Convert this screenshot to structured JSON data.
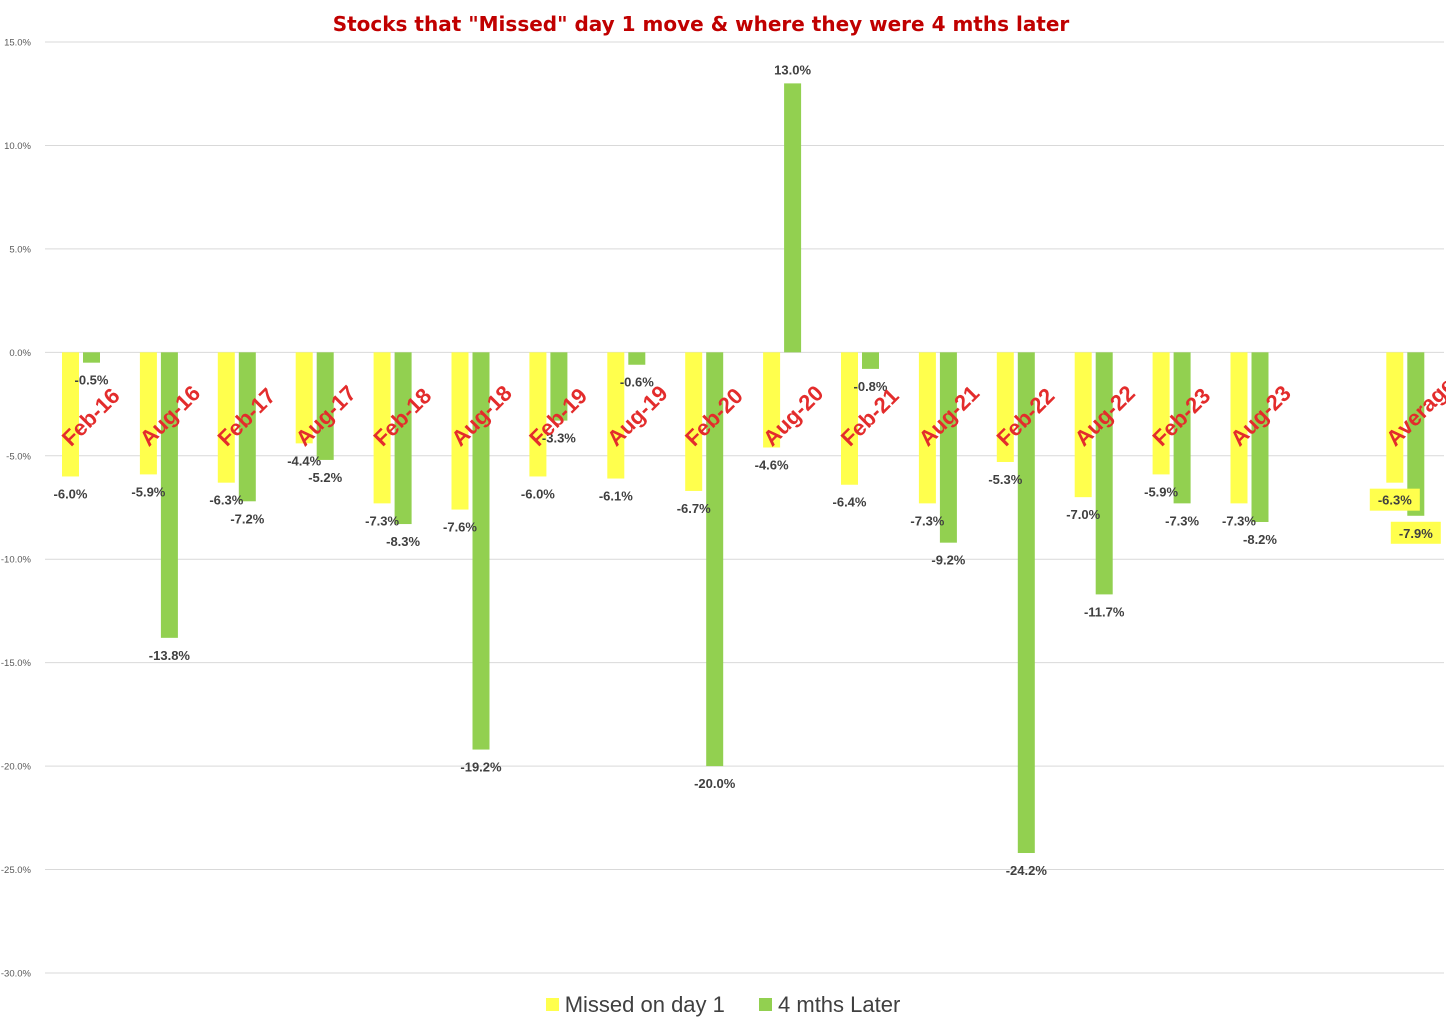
{
  "chart_data": {
    "type": "bar",
    "title": "Stocks that \"Missed\" day 1 move & where they were 4 mths later",
    "xlabel": "",
    "ylabel": "",
    "ylim": [
      -30.0,
      15.0
    ],
    "yticks": [
      "15.0%",
      "10.0%",
      "5.0%",
      "0.0%",
      "-5.0%",
      "-10.0%",
      "-15.0%",
      "-20.0%",
      "-25.0%",
      "-30.0%"
    ],
    "ytick_values": [
      15,
      10,
      5,
      0,
      -5,
      -10,
      -15,
      -20,
      -25,
      -30
    ],
    "grid": true,
    "legend_position": "bottom",
    "categories": [
      "Feb-16",
      "Aug-16",
      "Feb-17",
      "Aug-17",
      "Feb-18",
      "Aug-18",
      "Feb-19",
      "Aug-19",
      "Feb-20",
      "Aug-20",
      "Feb-21",
      "Aug-21",
      "Feb-22",
      "Aug-22",
      "Feb-23",
      "Aug-23",
      "",
      "Average"
    ],
    "series": [
      {
        "name": "Missed on day 1",
        "color": "#ffff4d",
        "values": [
          -6.0,
          -5.9,
          -6.3,
          -4.4,
          -7.3,
          -7.6,
          -6.0,
          -6.1,
          -6.7,
          -4.6,
          -6.4,
          -7.3,
          -5.3,
          -7.0,
          -5.9,
          -7.3,
          null,
          -6.3
        ],
        "labels": [
          "-6.0%",
          "-5.9%",
          "-6.3%",
          "-4.4%",
          "-7.3%",
          "-7.6%",
          "-6.0%",
          "-6.1%",
          "-6.7%",
          "-4.6%",
          "-6.4%",
          "-7.3%",
          "-5.3%",
          "-7.0%",
          "-5.9%",
          "-7.3%",
          "",
          "-6.3%"
        ]
      },
      {
        "name": "4 mths Later",
        "color": "#92d050",
        "values": [
          -0.5,
          -13.8,
          -7.2,
          -5.2,
          -8.3,
          -19.2,
          -3.3,
          -0.6,
          -20.0,
          13.0,
          -0.8,
          -9.2,
          -24.2,
          -11.7,
          -7.3,
          -8.2,
          null,
          -7.9
        ],
        "labels": [
          "-0.5%",
          "-13.8%",
          "-7.2%",
          "-5.2%",
          "-8.3%",
          "-19.2%",
          "-3.3%",
          "-0.6%",
          "-20.0%",
          "13.0%",
          "-0.8%",
          "-9.2%",
          "-24.2%",
          "-11.7%",
          "-7.3%",
          "-8.2%",
          "",
          "-7.9%"
        ]
      }
    ],
    "category_label_color": "#e32c2c"
  }
}
